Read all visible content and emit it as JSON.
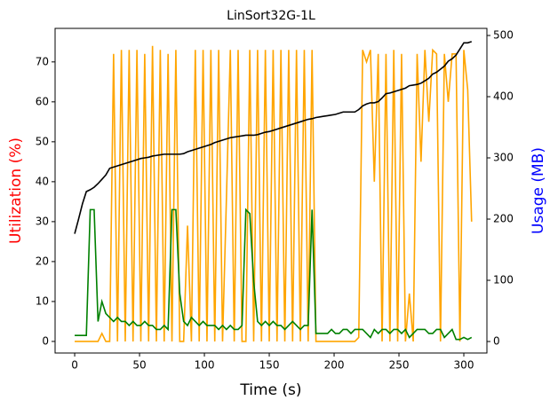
{
  "chart_data": {
    "type": "line",
    "title": "LinSort32G-1L",
    "xlabel": "Time (s)",
    "ylabel": "Utilization (%)",
    "y2label": "Usage (MB)",
    "ylabel_color": "#ff0000",
    "y2label_color": "#0000ff",
    "x": [
      0,
      3,
      6,
      9,
      12,
      15,
      18,
      21,
      24,
      27,
      30,
      33,
      36,
      39,
      42,
      45,
      48,
      51,
      54,
      57,
      60,
      63,
      66,
      69,
      72,
      75,
      78,
      81,
      84,
      87,
      90,
      93,
      96,
      99,
      102,
      105,
      108,
      111,
      114,
      117,
      120,
      123,
      126,
      129,
      132,
      135,
      138,
      141,
      144,
      147,
      150,
      153,
      156,
      159,
      162,
      165,
      168,
      171,
      174,
      177,
      180,
      183,
      186,
      189,
      192,
      195,
      198,
      201,
      204,
      207,
      210,
      213,
      216,
      219,
      222,
      225,
      228,
      231,
      234,
      237,
      240,
      243,
      246,
      249,
      252,
      255,
      258,
      261,
      264,
      267,
      270,
      273,
      276,
      279,
      282,
      285,
      288,
      291,
      294,
      297,
      300,
      303,
      306
    ],
    "series": [
      {
        "color": "#ffa500",
        "values": [
          0,
          0,
          0,
          0,
          0,
          0,
          0,
          2,
          0,
          0,
          72,
          0,
          73,
          0,
          73,
          0,
          73,
          0,
          72,
          0,
          74,
          0,
          73,
          0,
          72,
          0,
          73,
          0,
          0,
          29,
          0,
          73,
          0,
          73,
          0,
          73,
          0,
          73,
          0,
          36,
          73,
          0,
          73,
          0,
          0,
          73,
          0,
          73,
          0,
          73,
          0,
          73,
          0,
          73,
          0,
          73,
          0,
          73,
          0,
          73,
          0,
          73,
          0,
          0,
          0,
          0,
          0,
          0,
          0,
          0,
          0,
          0,
          0,
          1,
          73,
          70,
          73,
          40,
          72,
          0,
          72,
          0,
          73,
          0,
          72,
          0,
          12,
          0,
          72,
          45,
          73,
          55,
          73,
          72,
          0,
          72,
          60,
          72,
          72,
          0,
          73,
          63,
          30
        ]
      },
      {
        "color": "#008000",
        "values": [
          1.5,
          1.5,
          1.5,
          1.5,
          33,
          33,
          5,
          10,
          7,
          6,
          5,
          6,
          5,
          5,
          4,
          5,
          4,
          4,
          5,
          4,
          4,
          3,
          3,
          4,
          3,
          33,
          33,
          12,
          5,
          4,
          6,
          5,
          4,
          5,
          4,
          4,
          4,
          3,
          4,
          3,
          4,
          3,
          3,
          4,
          33,
          32,
          15,
          5,
          4,
          5,
          4,
          5,
          4,
          4,
          3,
          4,
          5,
          4,
          3,
          4,
          4,
          33,
          2,
          2,
          2,
          2,
          3,
          2,
          2,
          3,
          3,
          2,
          3,
          3,
          3,
          2,
          1,
          3,
          2,
          3,
          3,
          2,
          3,
          3,
          2,
          3,
          1,
          2,
          3,
          3,
          3,
          2,
          2,
          3,
          3,
          1,
          2,
          3,
          0.5,
          0.5,
          1,
          0.5,
          1
        ]
      },
      {
        "color": "#000000",
        "axis": "y2",
        "values": [
          176,
          200,
          225,
          245,
          248,
          252,
          258,
          265,
          272,
          283,
          285,
          287,
          289,
          291,
          293,
          295,
          297,
          299,
          300,
          301,
          303,
          304,
          305,
          306,
          306,
          306,
          306,
          306,
          307,
          310,
          312,
          314,
          316,
          318,
          320,
          322,
          325,
          327,
          329,
          331,
          333,
          334,
          335,
          336,
          337,
          337,
          337,
          338,
          340,
          342,
          343,
          345,
          347,
          349,
          351,
          353,
          355,
          357,
          359,
          361,
          363,
          364,
          366,
          367,
          368,
          369,
          370,
          371,
          373,
          375,
          375,
          375,
          375,
          379,
          385,
          388,
          390,
          390,
          392,
          398,
          405,
          406,
          408,
          410,
          412,
          414,
          418,
          419,
          420,
          422,
          426,
          430,
          437,
          440,
          445,
          450,
          458,
          462,
          468,
          478,
          488,
          488,
          490
        ]
      }
    ],
    "xlim": [
      -15.1,
      317.8
    ],
    "xticks": [
      0,
      50,
      100,
      150,
      200,
      250,
      300
    ],
    "ylim": [
      -2.9,
      78.4
    ],
    "yticks": [
      0,
      10,
      20,
      30,
      40,
      50,
      60,
      70
    ],
    "y2lim": [
      -18.8,
      511.6
    ],
    "y2ticks": [
      0,
      100,
      200,
      300,
      400,
      500
    ]
  }
}
